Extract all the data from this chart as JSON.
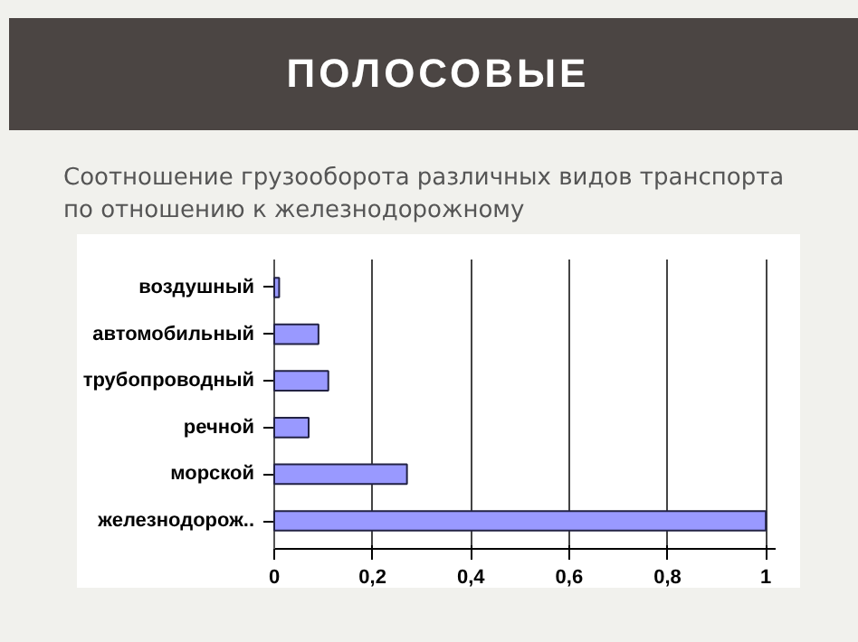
{
  "chart_data": {
    "type": "bar",
    "orientation": "horizontal",
    "title": "ПОЛОСОВЫЕ",
    "subtitle": "Соотношение грузооборота различных видов транспорта по отношению к железнодорожному",
    "categories": [
      "воздушный",
      "автомобильный",
      "трубопроводный",
      "речной",
      "морской",
      "железнодорож.."
    ],
    "values": [
      0.01,
      0.09,
      0.11,
      0.07,
      0.27,
      1.0
    ],
    "color": "#9999ff",
    "xlim": [
      0,
      1.02
    ],
    "xticks": [
      0,
      {
        "value": 0.2,
        "label": "0,2"
      },
      {
        "value": 0.4,
        "label": "0,4"
      },
      {
        "value": 0.6,
        "label": "0,6"
      },
      {
        "value": 0.8,
        "label": "0,8"
      },
      1
    ],
    "grid": "x"
  }
}
